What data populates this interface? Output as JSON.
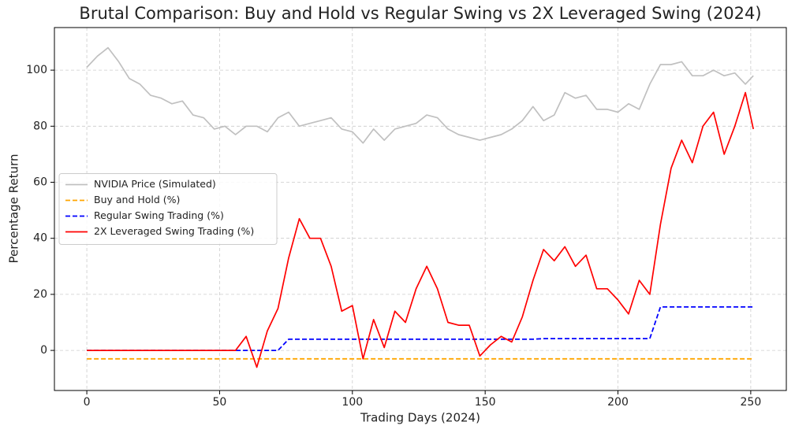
{
  "chart_data": {
    "type": "line",
    "title": "Brutal Comparison: Buy and Hold vs Regular Swing vs 2X Leveraged Swing (2024)",
    "x_label": "Trading Days (2024)",
    "y_label": "Percentage Return",
    "x": [
      0,
      4,
      8,
      12,
      16,
      20,
      24,
      28,
      32,
      36,
      40,
      44,
      48,
      52,
      56,
      60,
      64,
      68,
      72,
      76,
      80,
      84,
      88,
      92,
      96,
      100,
      104,
      108,
      112,
      116,
      120,
      124,
      128,
      132,
      136,
      140,
      144,
      148,
      152,
      156,
      160,
      164,
      168,
      172,
      176,
      180,
      184,
      188,
      192,
      196,
      200,
      204,
      208,
      212,
      216,
      220,
      224,
      228,
      232,
      236,
      240,
      244,
      248,
      251
    ],
    "series": [
      {
        "name": "NVIDIA Price (Simulated)",
        "color": "#c0c0c0",
        "linestyle": "solid",
        "values": [
          101,
          105,
          108,
          103,
          97,
          95,
          91,
          90,
          88,
          89,
          84,
          83,
          79,
          80,
          77,
          80,
          80,
          78,
          83,
          85,
          80,
          81,
          82,
          83,
          79,
          78,
          74,
          79,
          75,
          79,
          80,
          81,
          84,
          83,
          79,
          77,
          76,
          75,
          76,
          77,
          79,
          82,
          87,
          82,
          84,
          92,
          90,
          91,
          86,
          86,
          85,
          88,
          86,
          95,
          102,
          102,
          103,
          98,
          98,
          100,
          98,
          99,
          95,
          98
        ]
      },
      {
        "name": "Buy and Hold (%)",
        "color": "#ffa500",
        "linestyle": "dashed",
        "values": [
          -3,
          -3,
          -3,
          -3,
          -3,
          -3,
          -3,
          -3,
          -3,
          -3,
          -3,
          -3,
          -3,
          -3,
          -3,
          -3,
          -3,
          -3,
          -3,
          -3,
          -3,
          -3,
          -3,
          -3,
          -3,
          -3,
          -3,
          -3,
          -3,
          -3,
          -3,
          -3,
          -3,
          -3,
          -3,
          -3,
          -3,
          -3,
          -3,
          -3,
          -3,
          -3,
          -3,
          -3,
          -3,
          -3,
          -3,
          -3,
          -3,
          -3,
          -3,
          -3,
          -3,
          -3,
          -3,
          -3,
          -3,
          -3,
          -3,
          -3,
          -3,
          -3,
          -3,
          -3
        ]
      },
      {
        "name": "Regular Swing Trading (%)",
        "color": "#0000ff",
        "linestyle": "dashed",
        "values": [
          0,
          0,
          0,
          0,
          0,
          0,
          0,
          0,
          0,
          0,
          0,
          0,
          0,
          0,
          0,
          0,
          0,
          0,
          0,
          4,
          4,
          4,
          4,
          4,
          4,
          4,
          4,
          4,
          4,
          4,
          4,
          4,
          4,
          4,
          4,
          4,
          4,
          4,
          4,
          4,
          4,
          4,
          4,
          4.2,
          4.2,
          4.2,
          4.2,
          4.2,
          4.2,
          4.2,
          4.2,
          4.2,
          4.2,
          4.2,
          15.5,
          15.5,
          15.5,
          15.5,
          15.5,
          15.5,
          15.5,
          15.5,
          15.5,
          15.5
        ]
      },
      {
        "name": "2X Leveraged Swing Trading (%)",
        "color": "#ff0000",
        "linestyle": "solid",
        "values": [
          0,
          0,
          0,
          0,
          0,
          0,
          0,
          0,
          0,
          0,
          0,
          0,
          0,
          0,
          0,
          5,
          -6,
          7,
          15,
          33,
          47,
          40,
          40,
          30,
          14,
          16,
          -3,
          11,
          1,
          14,
          10,
          22,
          30,
          22,
          10,
          9,
          9,
          -2,
          2,
          5,
          3,
          12,
          25,
          36,
          32,
          37,
          30,
          34,
          22,
          22,
          18,
          13,
          25,
          20,
          45,
          65,
          75,
          67,
          80,
          85,
          70,
          80,
          92,
          79
        ]
      }
    ],
    "xlim": [
      -12.2,
      263.4
    ],
    "ylim": [
      -14.3,
      115.2
    ],
    "xticks": [
      0,
      50,
      100,
      150,
      200,
      250
    ],
    "yticks": [
      0,
      20,
      40,
      60,
      80,
      100
    ],
    "grid": true,
    "legend": "center left"
  }
}
